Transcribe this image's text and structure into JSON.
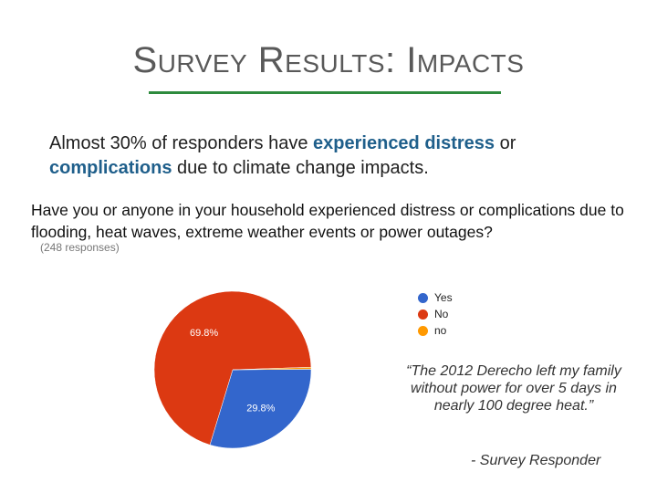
{
  "slide": {
    "title": "Survey Results: Impacts",
    "summary": {
      "part1": "Almost 30% of responders have ",
      "highlight1": "experienced distress",
      "part2": " or ",
      "highlight2": "complications",
      "part3": " due to climate change impacts."
    },
    "accent_color": "#2e8b3e",
    "highlight_color": "#1f5f8b"
  },
  "chart_data": {
    "type": "pie",
    "title": "Have you or anyone in your household experienced distress or complications due to flooding, heat waves, extreme weather events or power outages?",
    "subtitle": "(248 responses)",
    "legend_position": "right",
    "slices": [
      {
        "label": "Yes",
        "value": 29.8,
        "color": "#3366cc",
        "display": "29.8%"
      },
      {
        "label": "No",
        "value": 69.8,
        "color": "#dc3912",
        "display": "69.8%"
      },
      {
        "label": "no",
        "value": 0.4,
        "color": "#ff9900",
        "display": ""
      }
    ]
  },
  "quote": {
    "text": "“The 2012 Derecho left my family without power for over 5 days in nearly 100 degree heat.”",
    "attribution": "- Survey Responder"
  }
}
